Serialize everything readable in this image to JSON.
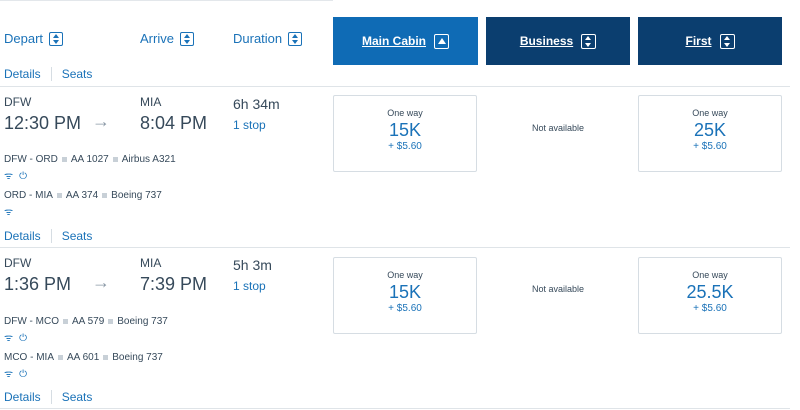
{
  "header": {
    "sort": {
      "depart": "Depart",
      "arrive": "Arrive",
      "duration": "Duration"
    },
    "cabins": {
      "main": "Main Cabin",
      "business": "Business",
      "first": "First"
    }
  },
  "links": {
    "details": "Details",
    "seats": "Seats"
  },
  "flights": [
    {
      "origin": "DFW",
      "depart_time": "12:30 PM",
      "arrow": "→",
      "destination": "MIA",
      "arrive_time": "8:04 PM",
      "duration": "6h 34m",
      "stops": "1 stop",
      "segments": [
        {
          "route": "DFW - ORD",
          "flight": "AA 1027",
          "aircraft": "Airbus A321"
        },
        {
          "route": "ORD - MIA",
          "flight": "AA 374",
          "aircraft": "Boeing 737"
        }
      ],
      "fares": {
        "main": {
          "label": "One way",
          "miles": "15K",
          "tax": "+ $5.60"
        },
        "business": {
          "label": "Not available"
        },
        "first": {
          "label": "One way",
          "miles": "25K",
          "tax": "+ $5.60"
        }
      }
    },
    {
      "origin": "DFW",
      "depart_time": "1:36 PM",
      "arrow": "→",
      "destination": "MIA",
      "arrive_time": "7:39 PM",
      "duration": "5h 3m",
      "stops": "1 stop",
      "segments": [
        {
          "route": "DFW - MCO",
          "flight": "AA 579",
          "aircraft": "Boeing 737"
        },
        {
          "route": "MCO - MIA",
          "flight": "AA 601",
          "aircraft": "Boeing 737"
        }
      ],
      "fares": {
        "main": {
          "label": "One way",
          "miles": "15K",
          "tax": "+ $5.60"
        },
        "business": {
          "label": "Not available"
        },
        "first": {
          "label": "One way",
          "miles": "25.5K",
          "tax": "+ $5.60"
        }
      }
    }
  ],
  "icons": {
    "wifi": "wifi-icon",
    "power": "power-outlet-icon"
  },
  "colors": {
    "link": "#1a72b8",
    "main_cabin_tab": "#0f6bb5",
    "other_cabin_tab": "#0b3e6f",
    "text": "#36495a"
  }
}
